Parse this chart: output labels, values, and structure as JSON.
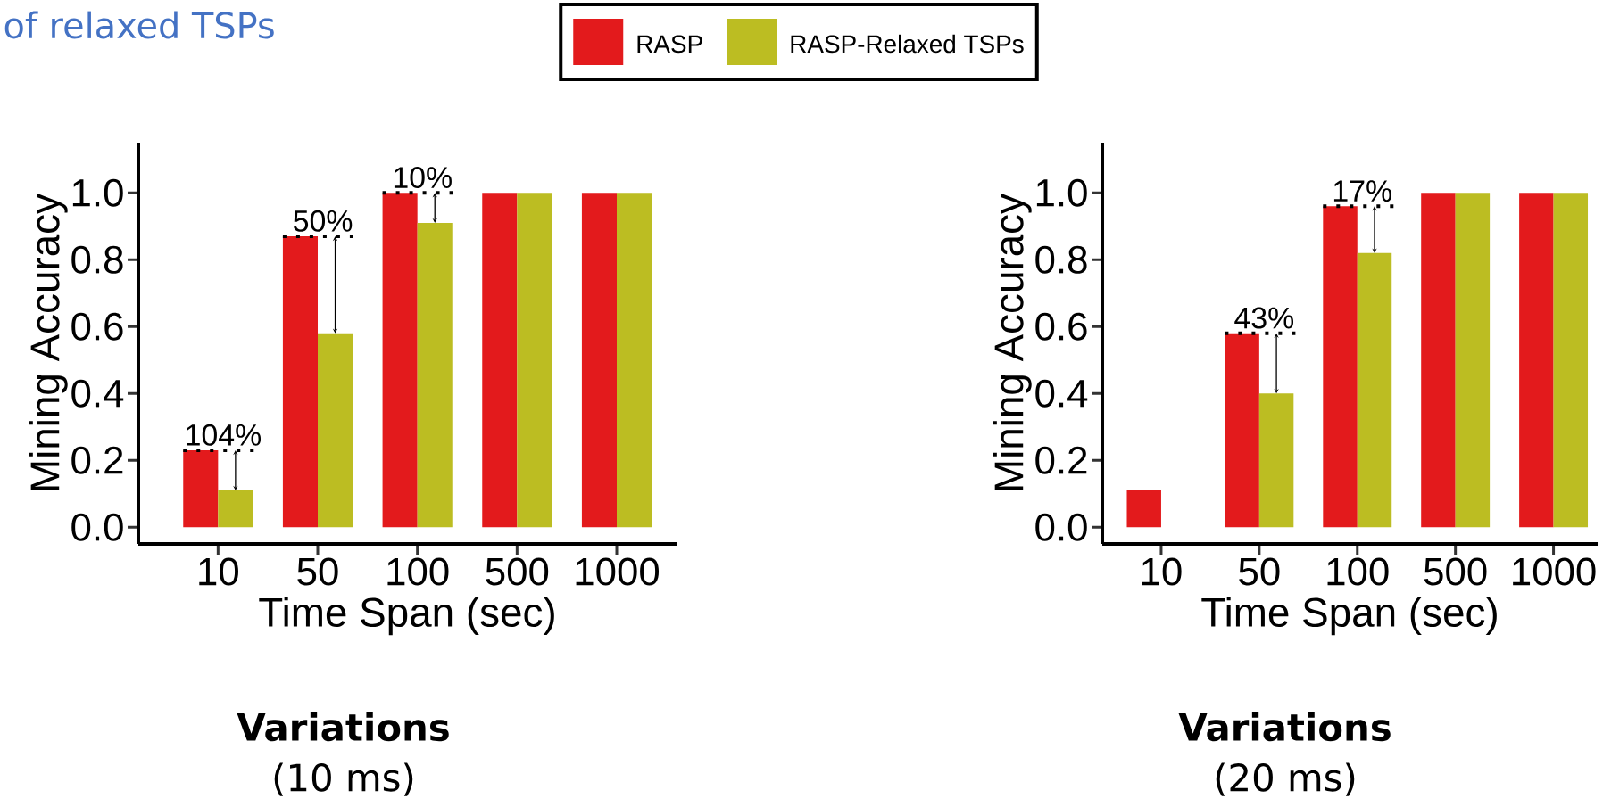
{
  "chart_data": [
    {
      "type": "bar",
      "title": "Variations",
      "subtitle": "(10 ms)",
      "xlabel": "Time Span (sec)",
      "ylabel": "Mining Accuracy",
      "categories": [
        "10",
        "50",
        "100",
        "500",
        "1000"
      ],
      "series": [
        {
          "name": "RASP",
          "color": "#e31a1c",
          "values": [
            0.23,
            0.87,
            1.0,
            1.0,
            1.0
          ]
        },
        {
          "name": "RASP-Relaxed TSPs",
          "color": "#bcbd22",
          "values": [
            0.11,
            0.58,
            0.91,
            1.0,
            1.0
          ]
        }
      ],
      "ylim": [
        -0.05,
        1.15
      ],
      "yticks": [
        {
          "value": 0,
          "label": "0.0"
        },
        {
          "value": 0.2,
          "label": "0.2"
        },
        {
          "value": 0.4,
          "label": "0.4"
        },
        {
          "value": 0.6,
          "label": "0.6"
        },
        {
          "value": 0.8,
          "label": "0.8"
        },
        {
          "value": 1,
          "label": "1.0"
        }
      ],
      "legend": "top",
      "annotations": [
        "of relaxed TSPs",
        {
          "text": "104%",
          "x": "10",
          "y": 0.23
        },
        {
          "text": "50%",
          "x": "50",
          "y": 0.87
        },
        {
          "text": "10%",
          "x": "100",
          "y": 1.0
        }
      ]
    },
    {
      "type": "bar",
      "title": "Variations",
      "subtitle": "(20 ms)",
      "xlabel": "Time Span (sec)",
      "ylabel": "Mining Accuracy",
      "categories": [
        "10",
        "50",
        "100",
        "500",
        "1000"
      ],
      "series": [
        {
          "color": "#e31a1c",
          "values": [
            0.11,
            0.58,
            0.96,
            1.0,
            1.0
          ]
        },
        {
          "color": "#bcbd22",
          "values": [
            0.0,
            0.4,
            0.82,
            1.0,
            1.0
          ]
        }
      ],
      "ylim": [
        -0.05,
        1.15
      ],
      "yticks": [
        {
          "value": 0,
          "label": "0.0"
        },
        {
          "value": 0.2,
          "label": "0.2"
        },
        {
          "value": 0.4,
          "label": "0.4"
        },
        {
          "value": 0.6,
          "label": "0.6"
        },
        {
          "value": 0.8,
          "label": "0.8"
        },
        {
          "value": 1,
          "label": "1.0"
        }
      ],
      "annotations": [
        {
          "text": "43%",
          "x": "50",
          "y": 0.58
        },
        {
          "text": "17%",
          "x": "100",
          "y": 0.96
        }
      ]
    }
  ]
}
